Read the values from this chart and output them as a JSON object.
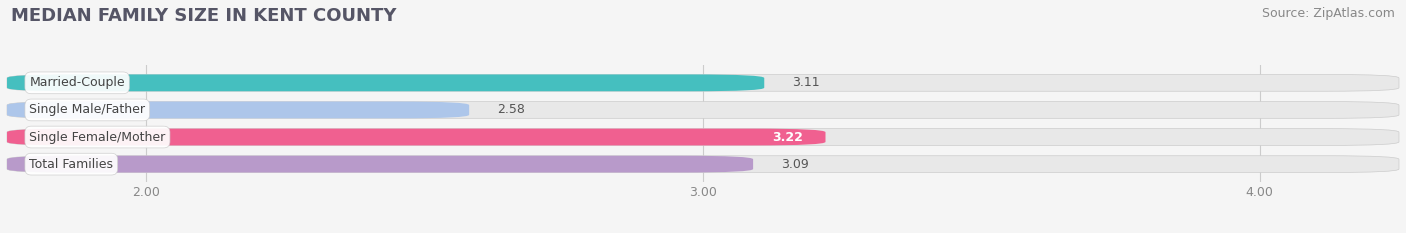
{
  "title": "MEDIAN FAMILY SIZE IN KENT COUNTY",
  "source": "Source: ZipAtlas.com",
  "categories": [
    "Married-Couple",
    "Single Male/Father",
    "Single Female/Mother",
    "Total Families"
  ],
  "values": [
    3.11,
    2.58,
    3.22,
    3.09
  ],
  "bar_colors": [
    "#45bfbf",
    "#adc6ea",
    "#f06090",
    "#b89aca"
  ],
  "value_inside": [
    false,
    false,
    true,
    false
  ],
  "xlim": [
    1.75,
    4.25
  ],
  "xstart": 0.0,
  "xticks": [
    2.0,
    3.0,
    4.0
  ],
  "xtick_labels": [
    "2.00",
    "3.00",
    "4.00"
  ],
  "background_color": "#f5f5f5",
  "bar_bg_color": "#e8e8e8",
  "title_fontsize": 13,
  "source_fontsize": 9,
  "label_fontsize": 9,
  "value_fontsize": 9,
  "bar_height": 0.62
}
